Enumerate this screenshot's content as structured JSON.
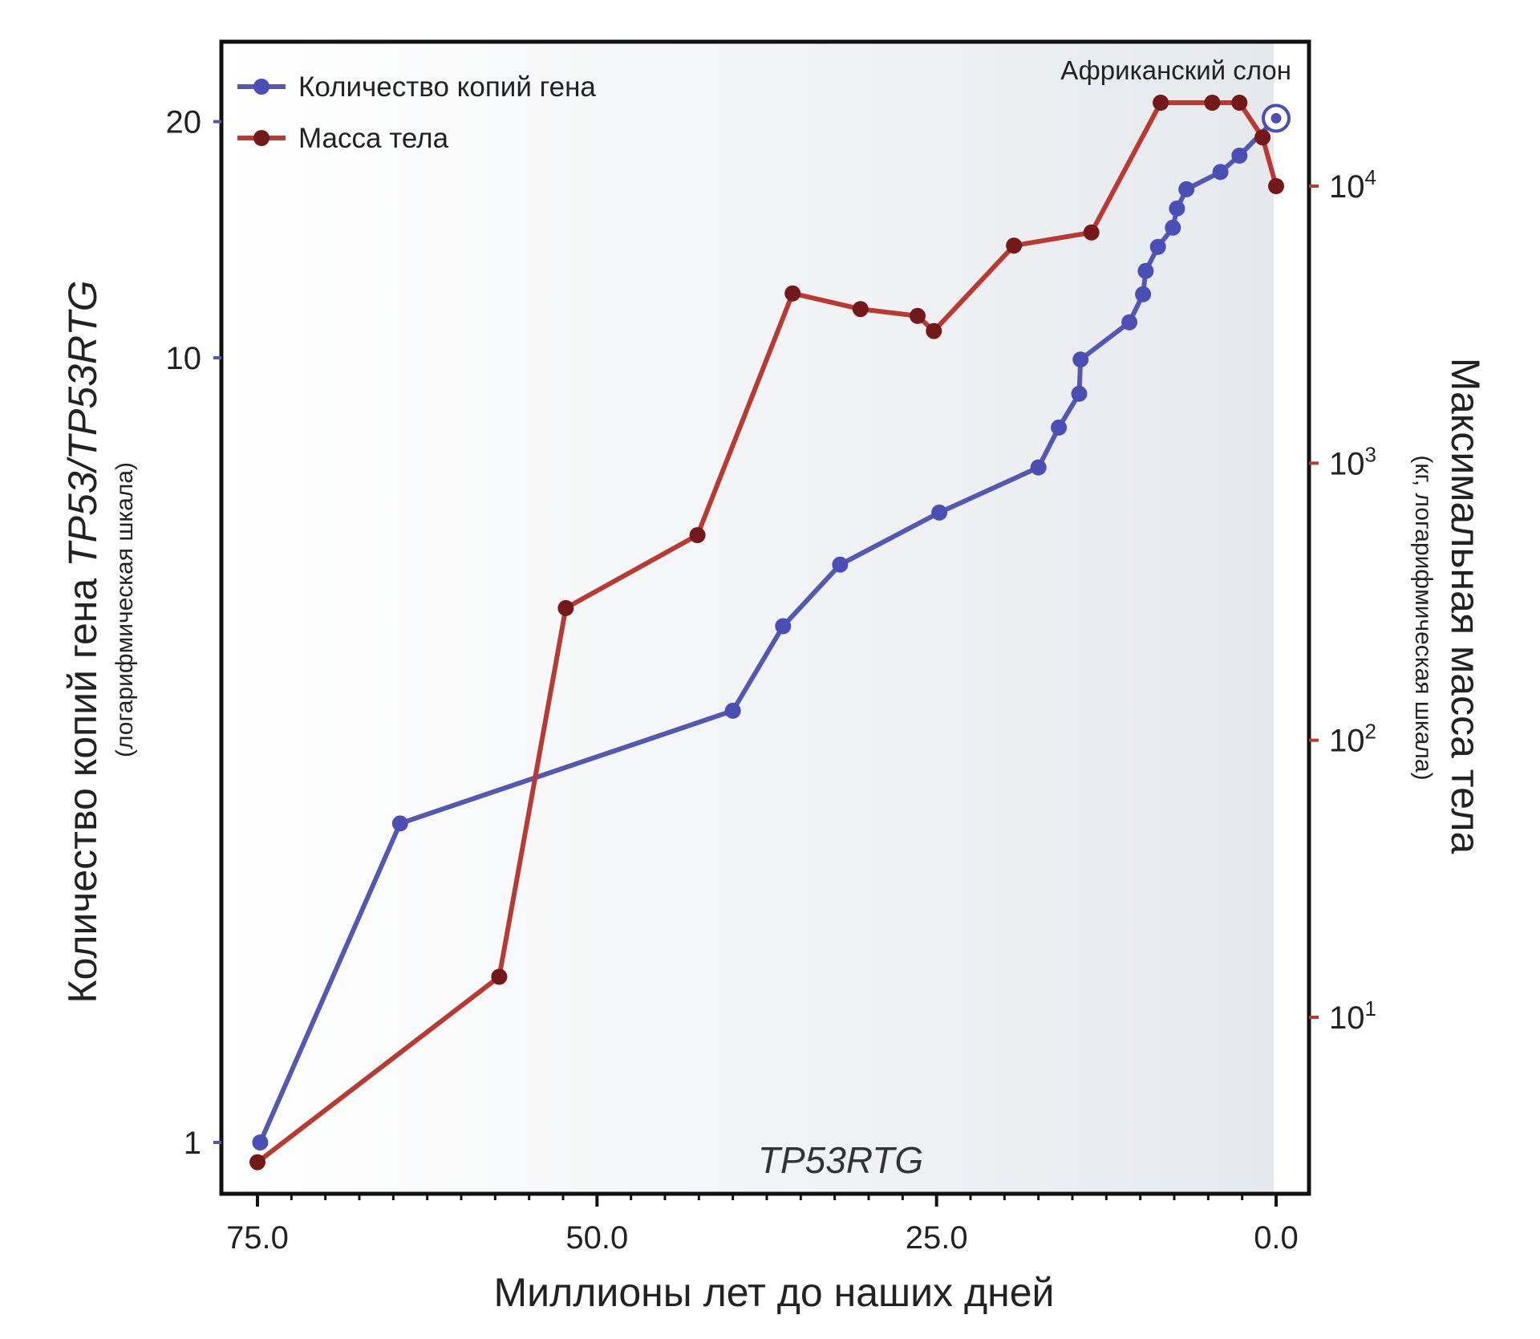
{
  "chart_data": {
    "type": "line",
    "xlabel": "Миллионы лет до наших дней",
    "ylabel": {
      "prefix": "Количество копий гена ",
      "gene": "TP53/TP53RTG",
      "note": "(логарифмическая шкала)"
    },
    "y2label": {
      "main": "Максимальная масса тела",
      "note": "(кг, логарифмическая шкала)"
    },
    "annotation": "Африканский слон",
    "gene_label": "TP53RTG",
    "xlim": [
      77,
      -2
    ],
    "x_reversed": true,
    "x_ticks": [
      {
        "value": 75,
        "label": "75.0"
      },
      {
        "value": 50,
        "label": "50.0"
      },
      {
        "value": 25,
        "label": "25.0"
      },
      {
        "value": 0,
        "label": "0.0"
      }
    ],
    "x_minor_ticks": [
      72.5,
      70,
      67.5,
      65,
      62.5,
      60,
      57.5,
      55,
      52.5,
      47.5,
      45,
      42.5,
      40,
      37.5,
      35,
      32.5,
      30,
      27.5,
      22.5,
      20,
      17.5,
      15,
      12.5,
      10,
      7.5,
      5,
      2.5
    ],
    "y_left": {
      "scale": "log",
      "ylim": [
        0.87,
        22
      ],
      "ticks": [
        {
          "value": 1,
          "label": "1"
        },
        {
          "value": 10,
          "label": "10"
        },
        {
          "value": 20,
          "label": "20"
        }
      ]
    },
    "y_right": {
      "scale": "log",
      "ylim": [
        1.2,
        40000
      ],
      "ticks": [
        {
          "value": 10,
          "base": "10",
          "exp": "1"
        },
        {
          "value": 100,
          "base": "10",
          "exp": "2"
        },
        {
          "value": 1000,
          "base": "10",
          "exp": "3"
        },
        {
          "value": 10000,
          "base": "10",
          "exp": "4"
        }
      ]
    },
    "background_gradient": {
      "from": "#ffffff",
      "to": "#e6e9ec"
    },
    "series": [
      {
        "name": "Количество копий гена",
        "axis": "left",
        "color": "#5558b0",
        "point_color": "#4b4fb3",
        "x": [
          74.8,
          64.5,
          40,
          36.3,
          32.1,
          24.8,
          17.5,
          16,
          14.5,
          14.4,
          10.8,
          9.8,
          9.6,
          8.7,
          7.6,
          7.3,
          6.6,
          4.1,
          2.7,
          0
        ],
        "y": [
          1,
          2.55,
          3.55,
          4.55,
          5.45,
          6.35,
          7.25,
          8.15,
          9,
          9.95,
          11.1,
          12.05,
          12.9,
          13.85,
          14.65,
          15.5,
          16.4,
          17.25,
          18.1,
          20.2
        ]
      },
      {
        "name": "Масса тела",
        "axis": "right",
        "color": "#b83a32",
        "point_color": "#741919",
        "x": [
          75,
          57.2,
          52.3,
          42.6,
          35.6,
          30.6,
          26.4,
          25.2,
          19.3,
          13.6,
          8.5,
          4.7,
          2.7,
          1,
          0
        ],
        "y": [
          3,
          14,
          300,
          550,
          4100,
          3600,
          3400,
          3000,
          6100,
          6800,
          20000,
          20000,
          20000,
          15000,
          10000
        ]
      }
    ]
  }
}
